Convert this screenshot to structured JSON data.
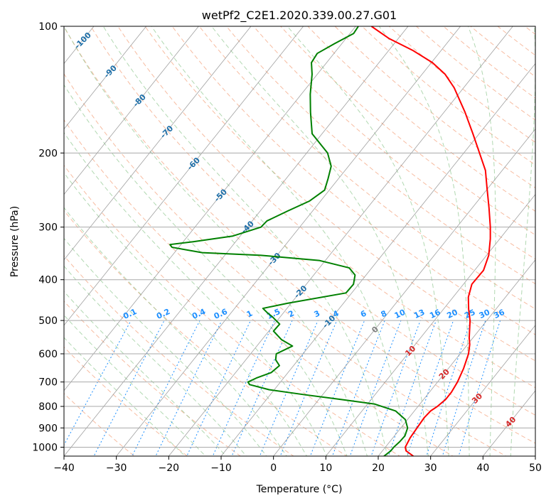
{
  "chart_data": {
    "type": "line",
    "chart_kind": "skew-T log-P thermodynamic diagram",
    "title": "wetPf2_C2E1.2020.339.00.27.G01",
    "xlabel": "Temperature (°C)",
    "ylabel": "Pressure (hPa)",
    "xlim": [
      -40,
      50
    ],
    "ylim": [
      1050,
      100
    ],
    "y_scale": "log",
    "x_ticks": [
      "−40",
      "−30",
      "−20",
      "−10",
      "0",
      "10",
      "20",
      "30",
      "40",
      "50"
    ],
    "y_ticks": [
      "100",
      "200",
      "300",
      "400",
      "500",
      "600",
      "700",
      "800",
      "900",
      "1000"
    ],
    "grid": true,
    "series": [
      {
        "color": "#ff0000",
        "points": [
          [
            1050,
            26.7
          ],
          [
            1020,
            24.5
          ],
          [
            1000,
            23.8
          ],
          [
            950,
            23.3
          ],
          [
            900,
            23.1
          ],
          [
            850,
            22.9
          ],
          [
            820,
            23.1
          ],
          [
            800,
            23.7
          ],
          [
            770,
            24.2
          ],
          [
            740,
            24.2
          ],
          [
            700,
            23.8
          ],
          [
            650,
            22.9
          ],
          [
            600,
            21.6
          ],
          [
            570,
            20.4
          ],
          [
            550,
            19.3
          ],
          [
            500,
            16.8
          ],
          [
            470,
            14.8
          ],
          [
            440,
            12.9
          ],
          [
            410,
            11.6
          ],
          [
            380,
            11.7
          ],
          [
            350,
            10.4
          ],
          [
            320,
            8.2
          ],
          [
            300,
            6.4
          ],
          [
            270,
            3.2
          ],
          [
            240,
            -0.5
          ],
          [
            220,
            -3.2
          ],
          [
            200,
            -7.0
          ],
          [
            180,
            -11.2
          ],
          [
            160,
            -16.0
          ],
          [
            140,
            -21.8
          ],
          [
            130,
            -25.6
          ],
          [
            122,
            -29.8
          ],
          [
            114,
            -35.5
          ],
          [
            107,
            -41.7
          ],
          [
            100,
            -47.0
          ]
        ]
      },
      {
        "color": "#008000",
        "points": [
          [
            1050,
            21.1
          ],
          [
            1020,
            21.6
          ],
          [
            1000,
            21.6
          ],
          [
            970,
            21.9
          ],
          [
            940,
            22.0
          ],
          [
            900,
            21.3
          ],
          [
            860,
            19.6
          ],
          [
            820,
            16.4
          ],
          [
            790,
            11.4
          ],
          [
            770,
            4.2
          ],
          [
            750,
            -3.6
          ],
          [
            730,
            -11.0
          ],
          [
            710,
            -15.5
          ],
          [
            700,
            -16.2
          ],
          [
            685,
            -15.2
          ],
          [
            665,
            -13.2
          ],
          [
            640,
            -12.7
          ],
          [
            620,
            -14.3
          ],
          [
            600,
            -15.1
          ],
          [
            575,
            -13.2
          ],
          [
            555,
            -16.3
          ],
          [
            530,
            -19.1
          ],
          [
            510,
            -19.0
          ],
          [
            490,
            -21.5
          ],
          [
            480,
            -23.0
          ],
          [
            468,
            -24.6
          ],
          [
            455,
            -20.7
          ],
          [
            430,
            -11.1
          ],
          [
            410,
            -11.0
          ],
          [
            390,
            -12.1
          ],
          [
            375,
            -14.3
          ],
          [
            360,
            -21.2
          ],
          [
            350,
            -33.1
          ],
          [
            345,
            -44.7
          ],
          [
            335,
            -51.3
          ],
          [
            330,
            -52.1
          ],
          [
            325,
            -48.1
          ],
          [
            315,
            -41.4
          ],
          [
            300,
            -37.4
          ],
          [
            290,
            -37.2
          ],
          [
            275,
            -34.8
          ],
          [
            260,
            -32.1
          ],
          [
            245,
            -30.9
          ],
          [
            230,
            -32.0
          ],
          [
            215,
            -33.3
          ],
          [
            200,
            -36.0
          ],
          [
            180,
            -41.9
          ],
          [
            160,
            -45.5
          ],
          [
            145,
            -48.3
          ],
          [
            130,
            -51.0
          ],
          [
            122,
            -52.9
          ],
          [
            116,
            -53.2
          ],
          [
            110,
            -51.4
          ],
          [
            104,
            -49.3
          ],
          [
            100,
            -49.5
          ]
        ]
      }
    ],
    "background_lines": {
      "dry_adiabat_color": "#f4a582",
      "moist_adiabat_color": "#90c890",
      "mixing_ratio_color": "#1e90ff",
      "isotherm_color": "#888888",
      "isobar_color": "#aaaaaa"
    },
    "isotherm_labels": [
      {
        "text": "-100",
        "color": "#1f6fa8"
      },
      {
        "text": "-90",
        "color": "#1f6fa8"
      },
      {
        "text": "-80",
        "color": "#1f6fa8"
      },
      {
        "text": "-70",
        "color": "#1f6fa8"
      },
      {
        "text": "-60",
        "color": "#1f6fa8"
      },
      {
        "text": "-50",
        "color": "#1f6fa8"
      },
      {
        "text": "-40",
        "color": "#1f6fa8"
      },
      {
        "text": "-30",
        "color": "#1f6fa8"
      },
      {
        "text": "-20",
        "color": "#1f6fa8"
      },
      {
        "text": "-10",
        "color": "#1f6fa8"
      },
      {
        "text": "0",
        "color": "#808080"
      },
      {
        "text": "10",
        "color": "#d62728"
      },
      {
        "text": "20",
        "color": "#d62728"
      },
      {
        "text": "30",
        "color": "#d62728"
      },
      {
        "text": "40",
        "color": "#d62728"
      }
    ],
    "mixing_ratio_labels": [
      "0.1",
      "0.2",
      "0.4",
      "0.6",
      "1",
      "1.5",
      "2",
      "3",
      "4",
      "6",
      "8",
      "10",
      "13",
      "16",
      "20",
      "25",
      "30",
      "36"
    ]
  }
}
